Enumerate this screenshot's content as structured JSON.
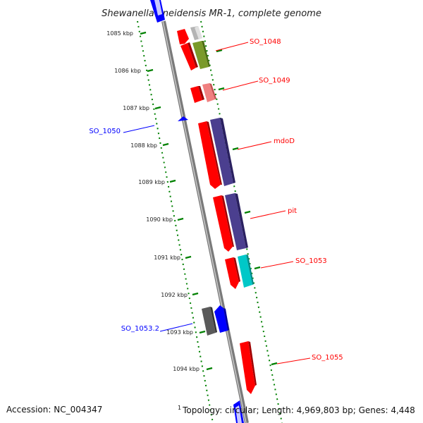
{
  "title": "Shewanella oneidensis MR-1, complete genome",
  "colors": {
    "forward_strand": "#ff0000",
    "reverse_strand": "#0000ff",
    "backbone": "#8c8c8c",
    "tick_marks": "#008000"
  },
  "ruler": {
    "unit": "kbp",
    "ticks": [
      "1085 kbp",
      "1086 kbp",
      "1087 kbp",
      "1088 kbp",
      "1089 kbp",
      "1090 kbp",
      "1091 kbp",
      "1092 kbp",
      "1093 kbp",
      "1094 kbp"
    ]
  },
  "genes": [
    {
      "label": "SO_1048",
      "strand": "forward",
      "color": "#ff0000"
    },
    {
      "label": "SO_1049",
      "strand": "forward",
      "color": "#ff0000"
    },
    {
      "label": "SO_1050",
      "strand": "reverse",
      "color": "#0000ff"
    },
    {
      "label": "mdoD",
      "strand": "forward",
      "color": "#ff0000"
    },
    {
      "label": "pit",
      "strand": "forward",
      "color": "#ff0000"
    },
    {
      "label": "SO_1053",
      "strand": "forward",
      "color": "#ff0000"
    },
    {
      "label": "SO_1053.2",
      "strand": "reverse",
      "color": "#0000ff"
    },
    {
      "label": "SO_1055",
      "strand": "forward",
      "color": "#ff0000"
    }
  ],
  "feature_colors": [
    "#b4b4b4",
    "#7a9a2a",
    "#f08080",
    "#4b3f8f",
    "#00c8c8",
    "#5a5a5a"
  ],
  "footer": {
    "accession": "Accession: NC_004347",
    "footnote_mark": "1",
    "topology": "Topology: circular; Length: 4,969,803 bp; Genes: 4,448"
  }
}
